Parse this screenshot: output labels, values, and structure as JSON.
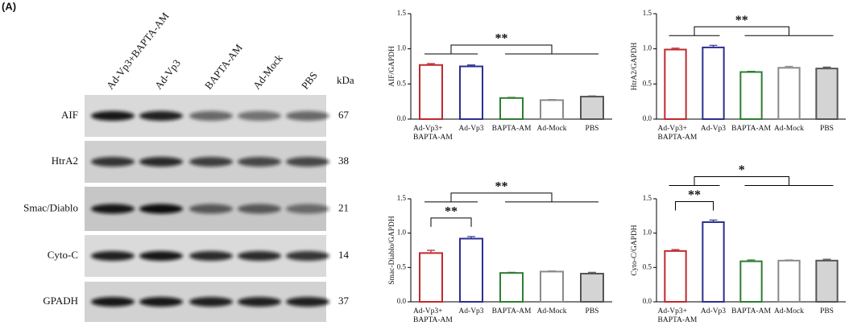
{
  "figure_label": "(A)",
  "blot": {
    "lanes": [
      "Ad-Vp3+BAPTA-AM",
      "Ad-Vp3",
      "BAPTA-AM",
      "Ad-Mock",
      "PBS"
    ],
    "unit": "kDa",
    "rows": [
      {
        "protein": "AIF",
        "kda": 67
      },
      {
        "protein": "HtrA2",
        "kda": 38
      },
      {
        "protein": "Smac/Diablo",
        "kda": 21
      },
      {
        "protein": "Cyto-C",
        "kda": 14
      },
      {
        "protein": "GPADH",
        "kda": 37
      }
    ]
  },
  "chart_data": [
    {
      "type": "bar",
      "y_label": "AIF/GAPDH",
      "categories": [
        "Ad-Vp3+\nBAPTA-AM",
        "Ad-Vp3",
        "BAPTA-AM",
        "Ad-Mock",
        "PBS"
      ],
      "values": [
        0.77,
        0.75,
        0.3,
        0.27,
        0.32
      ],
      "errors": [
        0.02,
        0.02,
        0.01,
        0.01,
        0.01
      ],
      "colors": [
        "#c0282d",
        "#2b2f8f",
        "#2e7d32",
        "#8a8a8a",
        "#555555"
      ],
      "fills": [
        "#ffffff",
        "#ffffff",
        "#ffffff",
        "#ffffff",
        "#d4d4d4"
      ],
      "ylim": [
        0,
        1.5
      ],
      "yticks": [
        {
          "value": 0,
          "label": "0.0"
        },
        0.5,
        {
          "value": 1,
          "label": "1.0"
        },
        1.5
      ],
      "annotations": [
        {
          "text": "**",
          "compare": [
            [
              0,
              1
            ],
            [
              2,
              3,
              4
            ]
          ]
        }
      ]
    },
    {
      "type": "bar",
      "y_label": "HtrA2/GAPDH",
      "categories": [
        "Ad-Vp3+\nBAPTA-AM",
        "Ad-Vp3",
        "BAPTA-AM",
        "Ad-Mock",
        "PBS"
      ],
      "values": [
        0.99,
        1.02,
        0.67,
        0.73,
        0.72
      ],
      "errors": [
        0.02,
        0.03,
        0.01,
        0.02,
        0.02
      ],
      "colors": [
        "#c0282d",
        "#2b2f8f",
        "#2e7d32",
        "#8a8a8a",
        "#555555"
      ],
      "fills": [
        "#ffffff",
        "#ffffff",
        "#ffffff",
        "#ffffff",
        "#d4d4d4"
      ],
      "ylim": [
        0,
        1.5
      ],
      "yticks": [
        {
          "value": 0,
          "label": "0.0"
        },
        0.5,
        {
          "value": 1,
          "label": "1.0"
        },
        1.5
      ],
      "annotations": [
        {
          "text": "**",
          "compare": [
            [
              0,
              1
            ],
            [
              2,
              3,
              4
            ]
          ]
        }
      ]
    },
    {
      "type": "bar",
      "y_label": "Smac-Diablo/GAPDH",
      "categories": [
        "Ad-Vp3+\nBAPTA-AM",
        "Ad-Vp3",
        "BAPTA-AM",
        "Ad-Mock",
        "PBS"
      ],
      "values": [
        0.71,
        0.92,
        0.42,
        0.44,
        0.41
      ],
      "errors": [
        0.04,
        0.03,
        0.01,
        0.01,
        0.02
      ],
      "colors": [
        "#c0282d",
        "#2b2f8f",
        "#2e7d32",
        "#8a8a8a",
        "#555555"
      ],
      "fills": [
        "#ffffff",
        "#ffffff",
        "#ffffff",
        "#ffffff",
        "#d4d4d4"
      ],
      "ylim": [
        0,
        1.5
      ],
      "yticks": [
        {
          "value": 0,
          "label": "0.0"
        },
        0.5,
        {
          "value": 1,
          "label": "1.0"
        },
        1.5
      ],
      "annotations": [
        {
          "text": "**",
          "compare": [
            [
              0
            ],
            [
              1
            ]
          ]
        },
        {
          "text": "**",
          "compare": [
            [
              0,
              1
            ],
            [
              2,
              3,
              4
            ]
          ]
        }
      ]
    },
    {
      "type": "bar",
      "y_label": "Cyto-C/GAPDH",
      "categories": [
        "Ad-Vp3+\nBAPTA-AM",
        "Ad-Vp3",
        "BAPTA-AM",
        "Ad-Mock",
        "PBS"
      ],
      "values": [
        0.74,
        1.16,
        0.59,
        0.6,
        0.6
      ],
      "errors": [
        0.02,
        0.03,
        0.02,
        0.01,
        0.02
      ],
      "colors": [
        "#c0282d",
        "#2b2f8f",
        "#2e7d32",
        "#8a8a8a",
        "#555555"
      ],
      "fills": [
        "#ffffff",
        "#ffffff",
        "#ffffff",
        "#ffffff",
        "#d4d4d4"
      ],
      "ylim": [
        0,
        1.5
      ],
      "yticks": [
        {
          "value": 0,
          "label": "0.0"
        },
        0.5,
        {
          "value": 1,
          "label": "1.0"
        },
        1.5
      ],
      "annotations": [
        {
          "text": "**",
          "compare": [
            [
              0
            ],
            [
              1
            ]
          ]
        },
        {
          "text": "*",
          "compare": [
            [
              0,
              1
            ],
            [
              2,
              3,
              4
            ]
          ]
        }
      ]
    }
  ]
}
